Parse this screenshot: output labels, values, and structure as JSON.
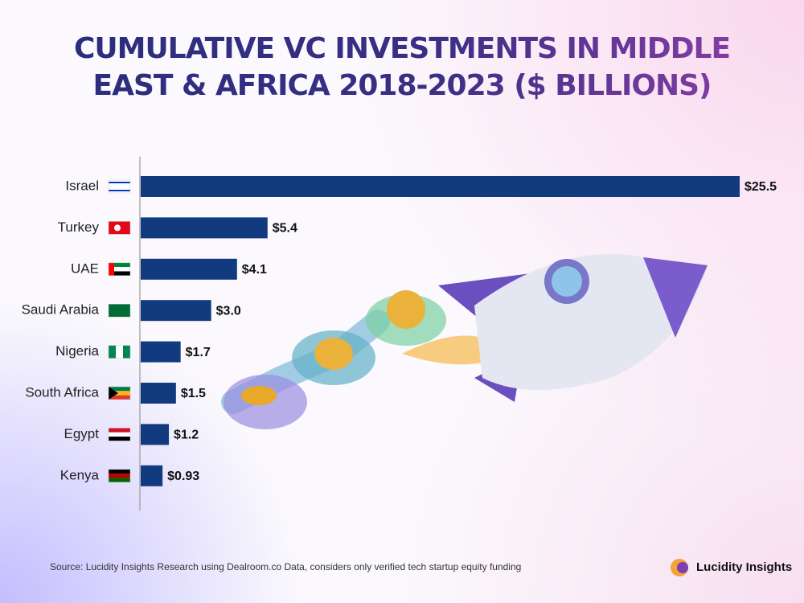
{
  "chart_data": {
    "type": "bar",
    "orientation": "horizontal",
    "title": "Cumulative VC Investments in Middle East & Africa 2018-2023 ($ Billions)",
    "categories": [
      "Israel",
      "Turkey",
      "UAE",
      "Saudi Arabia",
      "Nigeria",
      "South Africa",
      "Egypt",
      "Kenya"
    ],
    "values": [
      25.5,
      5.4,
      4.1,
      3.0,
      1.7,
      1.5,
      1.2,
      0.93
    ],
    "value_labels": [
      "$25.5",
      "$5.4",
      "$4.1",
      "$3.0",
      "$1.7",
      "$1.5",
      "$1.2",
      "$0.93"
    ],
    "color": "#123a7e"
  },
  "source": "Source: Lucidity Insights Research using Dealroom.co Data, considers only verified tech startup equity funding",
  "brand": "Lucidity Insights"
}
